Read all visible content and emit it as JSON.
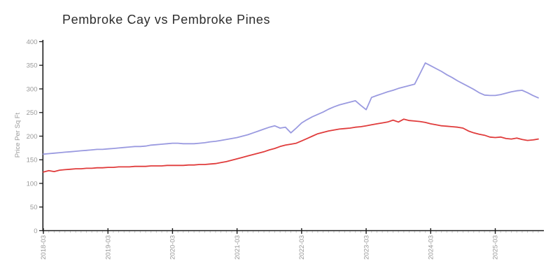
{
  "title": "Pembroke Cay vs Pembroke Pines",
  "chart_data": {
    "type": "line",
    "title": "Pembroke Cay vs Pembroke Pines",
    "xlabel": "",
    "ylabel": "Price Per Sq Ft",
    "ylim": [
      0,
      400
    ],
    "y_ticks": [
      0,
      50,
      100,
      150,
      200,
      250,
      300,
      350,
      400
    ],
    "x_start": "2018-03",
    "x_end": "2025-11",
    "x_frequency": "monthly",
    "x_major_tick_labels": [
      "2018-03",
      "2019-03",
      "2020-03",
      "2021-03",
      "2022-03",
      "2023-03",
      "2024-03",
      "2025-03"
    ],
    "x_major_tick_every_months": 12,
    "grid": false,
    "legend_position": "none",
    "axis_color": "#1c1c1c",
    "tick_label_color": "#999999",
    "minor_tick_color": "#c9c9c9",
    "series": [
      {
        "name": "Pembroke Cay",
        "color": "#9a9ae0",
        "values": [
          162,
          163,
          164,
          165,
          166,
          167,
          168,
          169,
          170,
          171,
          172,
          172,
          173,
          174,
          175,
          176,
          177,
          178,
          178,
          179,
          181,
          182,
          183,
          184,
          185,
          185,
          184,
          184,
          184,
          185,
          186,
          188,
          189,
          191,
          193,
          195,
          197,
          200,
          203,
          207,
          211,
          215,
          219,
          222,
          217,
          219,
          207,
          217,
          228,
          235,
          241,
          246,
          251,
          257,
          262,
          266,
          269,
          272,
          275,
          265,
          256,
          282,
          286,
          290,
          294,
          297,
          301,
          304,
          307,
          310,
          332,
          355,
          349,
          343,
          337,
          330,
          324,
          317,
          311,
          305,
          299,
          292,
          287,
          286,
          286,
          288,
          291,
          294,
          296,
          297,
          292,
          286,
          281
        ]
      },
      {
        "name": "Pembroke Pines",
        "color": "#e03c3c",
        "values": [
          124,
          127,
          125,
          128,
          129,
          130,
          131,
          131,
          132,
          132,
          133,
          133,
          134,
          134,
          135,
          135,
          135,
          136,
          136,
          136,
          137,
          137,
          137,
          138,
          138,
          138,
          138,
          139,
          139,
          140,
          140,
          141,
          142,
          144,
          146,
          149,
          152,
          155,
          158,
          161,
          164,
          167,
          171,
          174,
          178,
          181,
          183,
          185,
          190,
          195,
          200,
          205,
          208,
          211,
          213,
          215,
          216,
          217,
          219,
          220,
          222,
          224,
          226,
          228,
          230,
          234,
          230,
          236,
          233,
          232,
          231,
          229,
          226,
          224,
          222,
          221,
          220,
          219,
          217,
          211,
          207,
          204,
          202,
          198,
          197,
          198,
          195,
          194,
          196,
          193,
          191,
          192,
          194
        ]
      }
    ]
  }
}
